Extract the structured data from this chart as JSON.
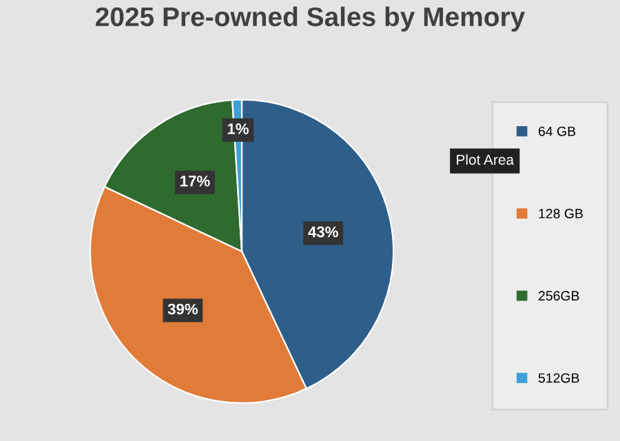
{
  "chart_data": {
    "type": "pie",
    "title": "2025 Pre-owned Sales by Memory",
    "categories": [
      "64 GB",
      "128 GB",
      "256GB",
      "512GB"
    ],
    "values": [
      43,
      39,
      17,
      1
    ],
    "value_labels": [
      "43%",
      "39%",
      "17%",
      "1%"
    ],
    "colors": [
      "#2e5f8a",
      "#e07b39",
      "#2f6b2f",
      "#3fa0d8"
    ],
    "legend": "right",
    "annotations": [
      "Plot Area"
    ]
  }
}
